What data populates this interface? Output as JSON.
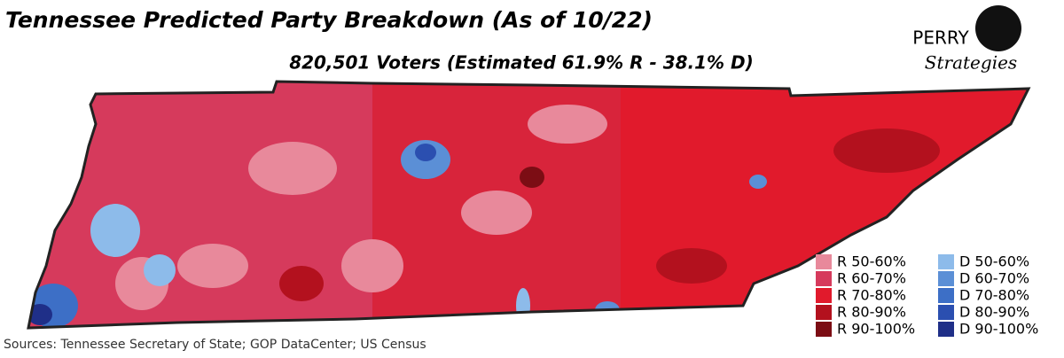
{
  "header": {
    "title": "Tennessee Predicted Party Breakdown (As of 10/22)",
    "subtitle": "820,501 Voters (Estimated 61.9% R - 38.1% D)"
  },
  "logo": {
    "name": "PERRY",
    "tagline": "Strategies"
  },
  "legend": {
    "columns": [
      [
        {
          "label": "R 50-60%",
          "color": "#e8899b"
        },
        {
          "label": "R 60-70%",
          "color": "#d63a5c"
        },
        {
          "label": "R 70-80%",
          "color": "#e11a2c"
        },
        {
          "label": "R 80-90%",
          "color": "#b3111e"
        },
        {
          "label": "R 90-100%",
          "color": "#7c0d14"
        }
      ],
      [
        {
          "label": "D 50-60%",
          "color": "#8dbbea"
        },
        {
          "label": "D 60-70%",
          "color": "#5b8fd6"
        },
        {
          "label": "D 70-80%",
          "color": "#3d6fc6"
        },
        {
          "label": "D 80-90%",
          "color": "#2b4fb0"
        },
        {
          "label": "D 90-100%",
          "color": "#1f2f88"
        }
      ]
    ]
  },
  "footer": {
    "source": "Sources: Tennessee Secretary of State; GOP DataCenter; US Census"
  }
}
